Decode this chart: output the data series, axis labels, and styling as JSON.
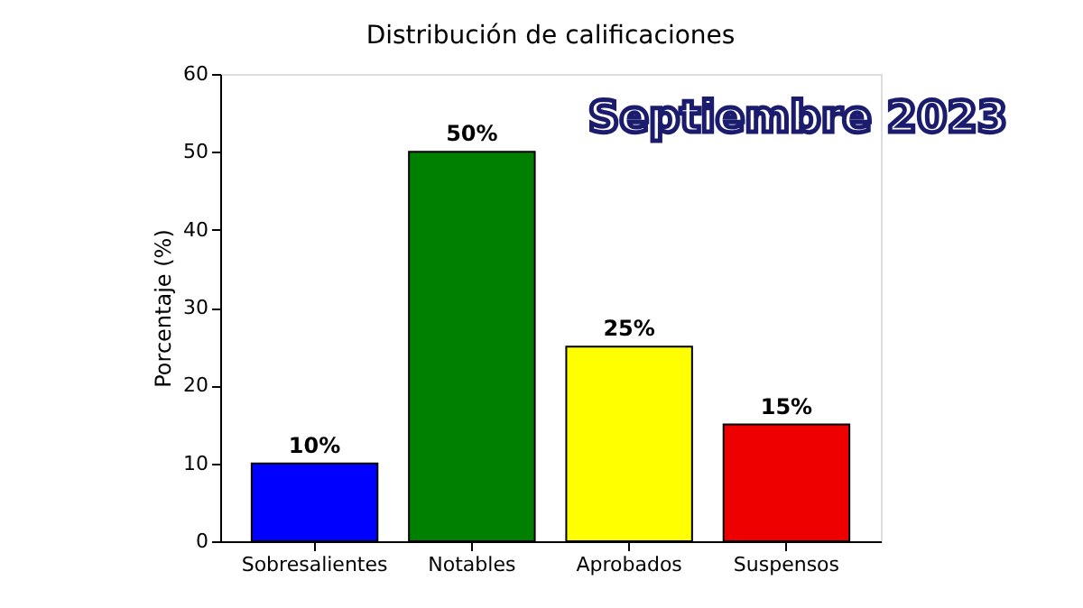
{
  "chart_data": {
    "type": "bar",
    "title": "Distribución de calificaciones",
    "ylabel": "Porcentaje (%)",
    "categories": [
      "Sobresalientes",
      "Notables",
      "Aprobados",
      "Suspensos"
    ],
    "values": [
      10,
      50,
      25,
      15
    ],
    "colors": [
      "#0000ff",
      "#008000",
      "#ffff00",
      "#ee0000"
    ],
    "value_labels": [
      "10%",
      "50%",
      "25%",
      "15%"
    ],
    "ylim": [
      0,
      60
    ],
    "yticks": [
      0,
      10,
      20,
      30,
      40,
      50,
      60
    ],
    "grid": false,
    "annotations": [
      "Septiembre 2023"
    ]
  }
}
